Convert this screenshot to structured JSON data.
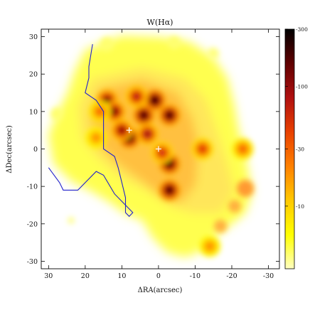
{
  "chart_data": {
    "type": "heatmap",
    "title": "W(Hα)",
    "xlabel": "ΔRA(arcsec)",
    "ylabel": "ΔDec(arcsec)",
    "xlim": [
      32,
      -33
    ],
    "ylim": [
      -32,
      32
    ],
    "x_ticks": [
      30,
      20,
      10,
      0,
      -10,
      -20,
      -30
    ],
    "y_ticks": [
      30,
      20,
      10,
      0,
      -10,
      -20,
      -30
    ],
    "colorbar": {
      "scale": "log",
      "range": [
        3,
        300
      ],
      "tick_labels": [
        "-300",
        "-100",
        "-30",
        "-10"
      ],
      "tick_values": [
        300,
        100,
        30,
        10
      ],
      "colors": [
        "#ffffc0",
        "#ffff00",
        "#ffc800",
        "#ff8000",
        "#e84000",
        "#b01010",
        "#600000",
        "#000000"
      ]
    },
    "blobs": [
      {
        "x": 8,
        "y": 3,
        "value": 300
      },
      {
        "x": 1,
        "y": 13,
        "value": 300
      },
      {
        "x": 4,
        "y": 9,
        "value": 240
      },
      {
        "x": 14,
        "y": 13,
        "value": 150
      },
      {
        "x": 12,
        "y": 10,
        "value": 150
      },
      {
        "x": -3,
        "y": 9,
        "value": 240
      },
      {
        "x": -3,
        "y": -4,
        "value": 240
      },
      {
        "x": -3,
        "y": -11,
        "value": 240
      },
      {
        "x": 10,
        "y": 5,
        "value": 120
      },
      {
        "x": 3,
        "y": 4,
        "value": 100
      },
      {
        "x": -12,
        "y": 0,
        "value": 50
      },
      {
        "x": -23,
        "y": 0,
        "value": 30
      },
      {
        "x": -14,
        "y": -26,
        "value": 20
      },
      {
        "x": 6,
        "y": 14,
        "value": 80
      },
      {
        "x": -1,
        "y": -1,
        "value": 60
      },
      {
        "x": 17,
        "y": 3,
        "value": 20
      },
      {
        "x": 16,
        "y": 10,
        "value": 30
      }
    ],
    "overlay_curves": [
      {
        "color": "#2222cc",
        "points": [
          [
            18,
            28
          ],
          [
            19,
            22
          ],
          [
            19,
            19
          ],
          [
            20,
            15
          ],
          [
            17,
            13
          ],
          [
            15,
            10
          ],
          [
            15,
            5
          ],
          [
            15,
            0
          ],
          [
            12,
            -2
          ],
          [
            11,
            -5
          ],
          [
            10,
            -9
          ],
          [
            9,
            -13
          ],
          [
            9,
            -17
          ],
          [
            8,
            -18
          ],
          [
            7,
            -17
          ],
          [
            10,
            -14
          ],
          [
            12,
            -12
          ],
          [
            15,
            -7
          ],
          [
            17,
            -6
          ],
          [
            19,
            -8
          ],
          [
            22,
            -11
          ],
          [
            26,
            -11
          ],
          [
            27,
            -9
          ],
          [
            30,
            -5
          ]
        ]
      }
    ],
    "markers": [
      {
        "symbol": "plus",
        "x": 0,
        "y": 0
      },
      {
        "symbol": "plus",
        "x": 8,
        "y": 5
      }
    ]
  }
}
